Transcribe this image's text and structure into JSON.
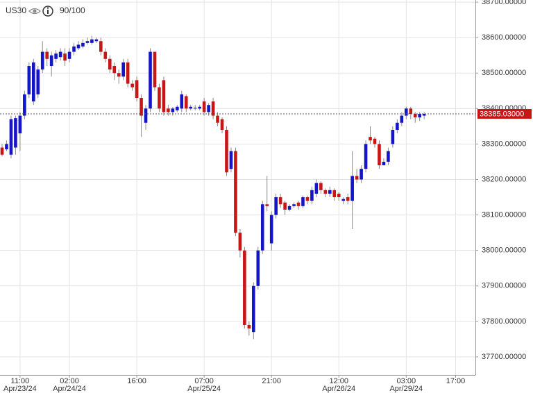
{
  "chart_data": {
    "type": "candlestick",
    "title": "US30",
    "badge": "90/100",
    "up_color": "#1515c8",
    "down_color": "#c81515",
    "grid": true,
    "last_price": {
      "value": 38385.03,
      "label": "38385.03000"
    },
    "ylim": [
      37649,
      38706
    ],
    "yticks": [
      {
        "value": 37700,
        "label": "37700.00000"
      },
      {
        "value": 37800,
        "label": "37800.00000"
      },
      {
        "value": 37900,
        "label": "37900.00000"
      },
      {
        "value": 38000,
        "label": "38000.00000"
      },
      {
        "value": 38100,
        "label": "38100.00000"
      },
      {
        "value": 38200,
        "label": "38200.00000"
      },
      {
        "value": 38300,
        "label": "38300.00000"
      },
      {
        "value": 38400,
        "label": "38400.00000"
      },
      {
        "value": 38500,
        "label": "38500.00000"
      },
      {
        "value": 38600,
        "label": "38600.00000"
      },
      {
        "value": 38700,
        "label": "38700.00000"
      }
    ],
    "categories": [
      null,
      null,
      null,
      null,
      "11:00",
      null,
      null,
      null,
      null,
      null,
      null,
      null,
      null,
      null,
      null,
      "02:00",
      null,
      null,
      null,
      null,
      null,
      null,
      null,
      null,
      null,
      null,
      null,
      null,
      null,
      null,
      "16:00",
      null,
      null,
      null,
      null,
      null,
      null,
      null,
      null,
      null,
      null,
      null,
      null,
      null,
      null,
      "07:00",
      null,
      null,
      null,
      null,
      null,
      null,
      null,
      null,
      null,
      null,
      null,
      null,
      null,
      null,
      "21:00",
      null,
      null,
      null,
      null,
      null,
      null,
      null,
      null,
      null,
      null,
      null,
      null,
      null,
      null,
      "12:00",
      null,
      null,
      null,
      null,
      null,
      null,
      null,
      null,
      null,
      null,
      null,
      null,
      null,
      null,
      "03:00",
      null,
      null,
      null,
      null,
      null,
      null,
      null,
      null,
      null,
      null,
      "17:00"
    ],
    "dates": [
      null,
      null,
      null,
      null,
      "Apr/23/24",
      null,
      null,
      null,
      null,
      null,
      null,
      null,
      null,
      null,
      null,
      "Apr/24/24",
      null,
      null,
      null,
      null,
      null,
      null,
      null,
      null,
      null,
      null,
      null,
      null,
      null,
      null,
      null,
      null,
      null,
      null,
      null,
      null,
      null,
      null,
      null,
      null,
      null,
      null,
      null,
      null,
      null,
      "Apr/25/24",
      null,
      null,
      null,
      null,
      null,
      null,
      null,
      null,
      null,
      null,
      null,
      null,
      null,
      null,
      null,
      null,
      null,
      null,
      null,
      null,
      null,
      null,
      null,
      null,
      null,
      null,
      null,
      null,
      null,
      "Apr/26/24",
      null,
      null,
      null,
      null,
      null,
      null,
      null,
      null,
      null,
      null,
      null,
      null,
      null,
      null,
      "Apr/29/24",
      null,
      null,
      null,
      null,
      null,
      null,
      null,
      null,
      null,
      null,
      null
    ],
    "open": [
      38290,
      38285,
      38270,
      38290,
      38330,
      38380,
      38440,
      38420,
      38440,
      38510,
      38560,
      38520,
      38540,
      38545,
      38555,
      38540,
      38560,
      38570,
      38575,
      38585,
      38585,
      38590,
      38590,
      38560,
      38540,
      38520,
      38500,
      38490,
      38530,
      38470,
      38480,
      38430,
      38360,
      38400,
      38560,
      38460,
      38480,
      38400,
      38390,
      38395,
      38400,
      38435,
      38400,
      38400,
      38400,
      38420,
      38390,
      38420,
      38380,
      38370,
      38340,
      38230,
      38280,
      38050,
      38000,
      37790,
      37770,
      37900,
      38000,
      38130,
      38020,
      38100,
      38150,
      38135,
      38115,
      38125,
      38135,
      38125,
      38150,
      38140,
      38160,
      38190,
      38170,
      38160,
      38170,
      38160,
      38140,
      38150,
      38140,
      38210,
      38200,
      38230,
      38320,
      38315,
      38300,
      38240,
      38250,
      38300,
      38340,
      38360,
      38380,
      38400,
      38385,
      38375,
      38380,
      null,
      null,
      null,
      null,
      null,
      null,
      null
    ],
    "high": [
      38300,
      38310,
      38380,
      38380,
      38390,
      38450,
      38530,
      38540,
      38520,
      38590,
      38570,
      38560,
      38565,
      38570,
      38570,
      38570,
      38585,
      38590,
      38595,
      38600,
      38605,
      38600,
      38600,
      38570,
      38550,
      38530,
      38510,
      38540,
      38540,
      38480,
      38490,
      38440,
      38410,
      38570,
      38560,
      38470,
      38490,
      38410,
      38405,
      38410,
      38450,
      38440,
      38410,
      38410,
      38410,
      38430,
      38415,
      38430,
      38390,
      38375,
      38350,
      38290,
      38290,
      38060,
      38010,
      37800,
      37910,
      38010,
      38140,
      38210,
      38110,
      38160,
      38160,
      38140,
      38130,
      38135,
      38140,
      38155,
      38155,
      38180,
      38200,
      38195,
      38175,
      38180,
      38175,
      38165,
      38150,
      38160,
      38280,
      38230,
      38240,
      38310,
      38350,
      38320,
      38310,
      38260,
      38290,
      38350,
      38370,
      38390,
      38405,
      38405,
      38390,
      38390,
      38390,
      null,
      null,
      null,
      null,
      null,
      null,
      null
    ],
    "low": [
      38265,
      38280,
      38260,
      38270,
      38280,
      38370,
      38430,
      38410,
      38430,
      38500,
      38520,
      38490,
      38530,
      38535,
      38520,
      38530,
      38550,
      38565,
      38570,
      38580,
      38580,
      38585,
      38550,
      38530,
      38500,
      38480,
      38470,
      38480,
      38460,
      38450,
      38420,
      38320,
      38340,
      38390,
      38450,
      38390,
      38380,
      38380,
      38380,
      38390,
      38390,
      38390,
      38395,
      38395,
      38395,
      38380,
      38380,
      38370,
      38350,
      38330,
      38210,
      38220,
      38040,
      37980,
      37780,
      37760,
      37750,
      37890,
      37990,
      38110,
      38000,
      38090,
      38120,
      38100,
      38110,
      38120,
      38115,
      38120,
      38130,
      38130,
      38150,
      38160,
      38150,
      38150,
      38140,
      38140,
      38130,
      38130,
      38060,
      38190,
      38190,
      38220,
      38300,
      38290,
      38230,
      38240,
      38240,
      38290,
      38330,
      38350,
      38370,
      38370,
      38360,
      38365,
      38370,
      null,
      null,
      null,
      null,
      null,
      null,
      null
    ],
    "close": [
      38270,
      38300,
      38370,
      38373,
      38380,
      38440,
      38520,
      38530,
      38510,
      38560,
      38540,
      38550,
      38555,
      38560,
      38535,
      38560,
      38575,
      38580,
      38585,
      38590,
      38595,
      38595,
      38560,
      38540,
      38510,
      38500,
      38490,
      38530,
      38470,
      38460,
      38430,
      38380,
      38400,
      38560,
      38460,
      38400,
      38390,
      38390,
      38400,
      38405,
      38440,
      38400,
      38405,
      38402,
      38405,
      38390,
      38410,
      38380,
      38360,
      38340,
      38220,
      38280,
      38050,
      38000,
      37790,
      37780,
      37900,
      38000,
      38130,
      38125,
      38100,
      38150,
      38130,
      38115,
      38125,
      38130,
      38125,
      38150,
      38140,
      38170,
      38190,
      38170,
      38160,
      38170,
      38150,
      38150,
      38145,
      38140,
      38210,
      38200,
      38230,
      38300,
      38310,
      38300,
      38240,
      38250,
      38280,
      38340,
      38360,
      38380,
      38400,
      38385,
      38375,
      38385,
      38385.03,
      null,
      null,
      null,
      null,
      null,
      null,
      null
    ]
  }
}
